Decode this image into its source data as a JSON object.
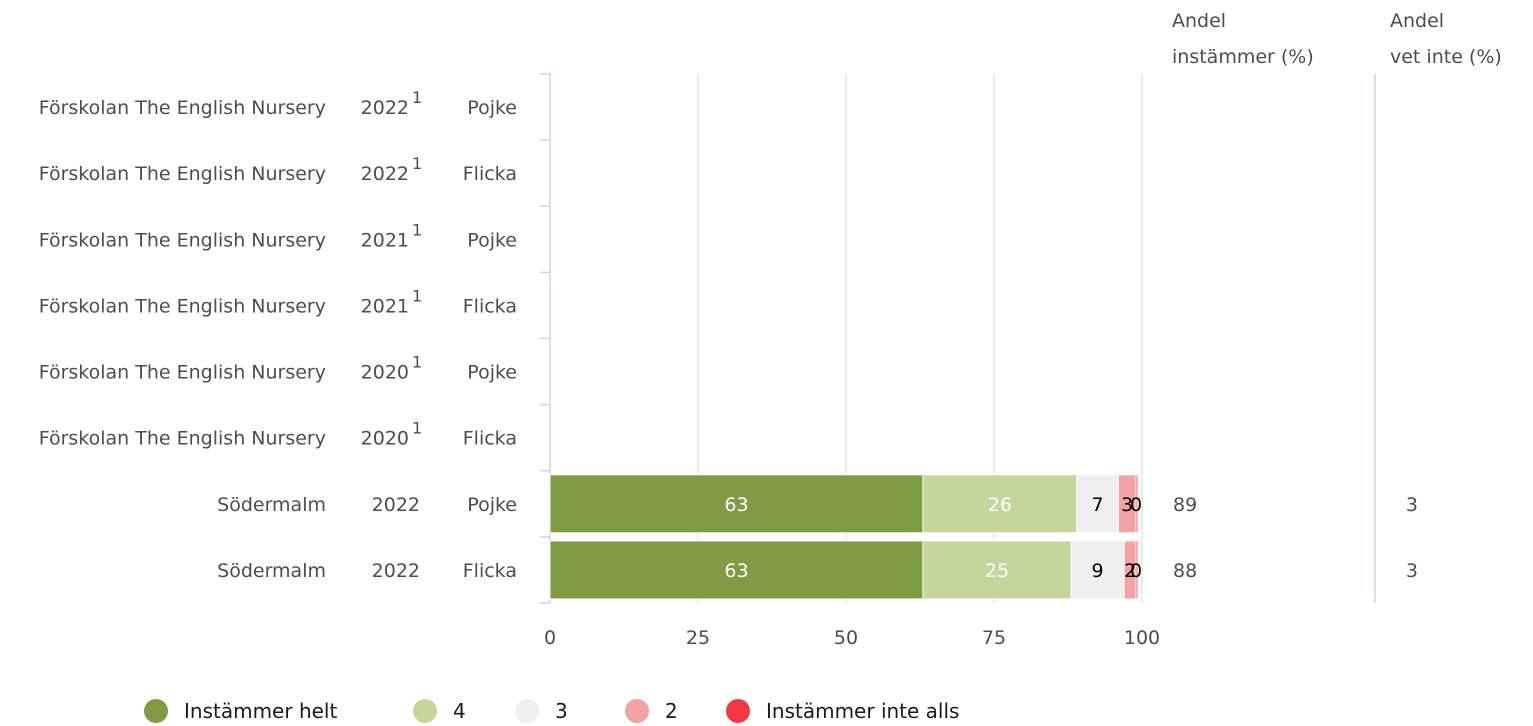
{
  "header": {
    "col1_line1": "Andel",
    "col1_line2": "instämmer (%)",
    "col2_line1": "Andel",
    "col2_line2": "vet inte (%)"
  },
  "chart_data": {
    "type": "bar",
    "orientation": "horizontal",
    "stacked": true,
    "xlim": [
      0,
      100
    ],
    "xticks": [
      "0",
      "25",
      "50",
      "75",
      "100"
    ],
    "grid": true,
    "legend_position": "bottom",
    "rows": [
      {
        "unit": "Förskolan The English Nursery",
        "year": "2022",
        "footnote": "1",
        "gender": "Pojke"
      },
      {
        "unit": "Förskolan The English Nursery",
        "year": "2022",
        "footnote": "1",
        "gender": "Flicka"
      },
      {
        "unit": "Förskolan The English Nursery",
        "year": "2021",
        "footnote": "1",
        "gender": "Pojke"
      },
      {
        "unit": "Förskolan The English Nursery",
        "year": "2021",
        "footnote": "1",
        "gender": "Flicka"
      },
      {
        "unit": "Förskolan The English Nursery",
        "year": "2020",
        "footnote": "1",
        "gender": "Pojke"
      },
      {
        "unit": "Förskolan The English Nursery",
        "year": "2020",
        "footnote": "1",
        "gender": "Flicka"
      },
      {
        "unit": "Södermalm",
        "year": "2022",
        "footnote": "",
        "gender": "Pojke"
      },
      {
        "unit": "Södermalm",
        "year": "2022",
        "footnote": "",
        "gender": "Flicka"
      }
    ],
    "series": [
      {
        "name": "Instämmer helt",
        "color": "#7f9c44",
        "label_color": "#ffffff",
        "values": [
          null,
          null,
          null,
          null,
          null,
          null,
          63,
          63
        ]
      },
      {
        "name": "4",
        "color": "#c3d69b",
        "label_color": "#ffffff",
        "values": [
          null,
          null,
          null,
          null,
          null,
          null,
          26,
          25
        ]
      },
      {
        "name": "3",
        "color": "#efefef",
        "label_color": "#000000",
        "values": [
          null,
          null,
          null,
          null,
          null,
          null,
          7,
          9
        ]
      },
      {
        "name": "2",
        "color": "#f4a3a3",
        "label_color": "#000000",
        "values": [
          null,
          null,
          null,
          null,
          null,
          null,
          3,
          2
        ]
      },
      {
        "name": "Instämmer inte alls",
        "color": "#f2393d",
        "label_color": "#000000",
        "values": [
          null,
          null,
          null,
          null,
          null,
          null,
          0,
          0
        ]
      }
    ],
    "andel_instammer": [
      "",
      "",
      "",
      "",
      "",
      "",
      "89",
      "88"
    ],
    "andel_vet_inte": [
      "",
      "",
      "",
      "",
      "",
      "",
      "3",
      "3"
    ]
  }
}
